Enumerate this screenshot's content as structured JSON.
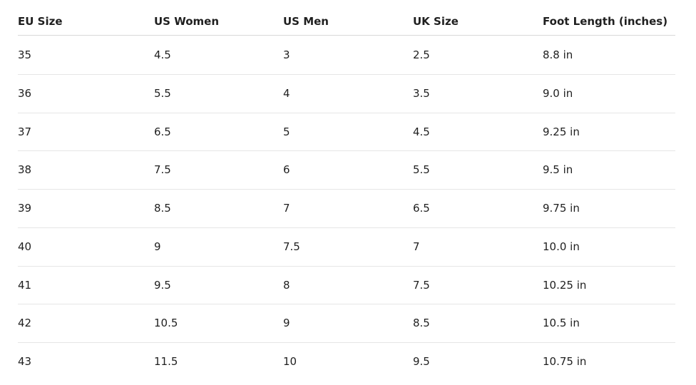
{
  "table": {
    "headers": [
      "EU Size",
      "US Women",
      "US Men",
      "UK Size",
      "Foot Length (inches)"
    ],
    "rows": [
      [
        "35",
        "4.5",
        "3",
        "2.5",
        "8.8 in"
      ],
      [
        "36",
        "5.5",
        "4",
        "3.5",
        "9.0 in"
      ],
      [
        "37",
        "6.5",
        "5",
        "4.5",
        "9.25 in"
      ],
      [
        "38",
        "7.5",
        "6",
        "5.5",
        "9.5 in"
      ],
      [
        "39",
        "8.5",
        "7",
        "6.5",
        "9.75 in"
      ],
      [
        "40",
        "9",
        "7.5",
        "7",
        "10.0 in"
      ],
      [
        "41",
        "9.5",
        "8",
        "7.5",
        "10.25 in"
      ],
      [
        "42",
        "10.5",
        "9",
        "8.5",
        "10.5 in"
      ],
      [
        "43",
        "11.5",
        "10",
        "9.5",
        "10.75 in"
      ]
    ]
  }
}
